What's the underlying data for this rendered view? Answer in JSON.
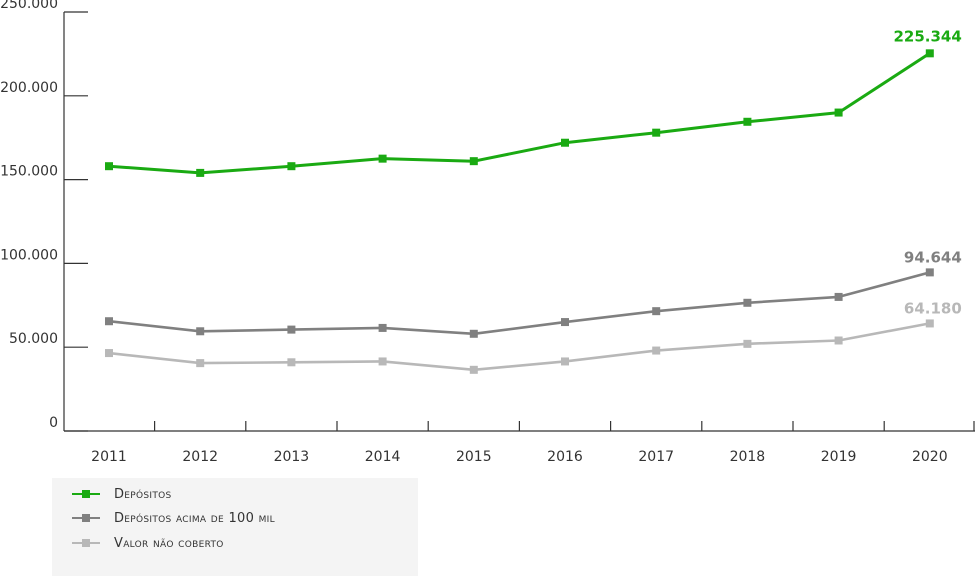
{
  "chart_data": {
    "type": "line",
    "title": "",
    "xlabel": "",
    "ylabel": "",
    "categories": [
      "2011",
      "2012",
      "2013",
      "2014",
      "2015",
      "2016",
      "2017",
      "2018",
      "2019",
      "2020"
    ],
    "ylim": [
      0,
      250000
    ],
    "y_ticks": [
      0,
      50000,
      100000,
      150000,
      200000,
      250000
    ],
    "y_tick_labels": [
      "0",
      "50.000",
      "100.000",
      "150.000",
      "200.000",
      "250.000"
    ],
    "grid": false,
    "legend_position": "bottom-left",
    "series": [
      {
        "name": "Depósitos",
        "color": "#1aaa12",
        "values": [
          158000,
          154000,
          158000,
          162500,
          161000,
          172000,
          178000,
          184500,
          190000,
          225344
        ],
        "end_label": "225.344"
      },
      {
        "name": "Depósitos acima de 100 mil",
        "color": "#808080",
        "values": [
          65500,
          59500,
          60500,
          61500,
          58000,
          65000,
          71500,
          76500,
          80000,
          94644
        ],
        "end_label": "94.644"
      },
      {
        "name": "Valor não coberto",
        "color": "#b8b8b8",
        "values": [
          46500,
          40500,
          41000,
          41500,
          36500,
          41500,
          48000,
          52000,
          54000,
          64180
        ],
        "end_label": "64.180"
      }
    ]
  }
}
